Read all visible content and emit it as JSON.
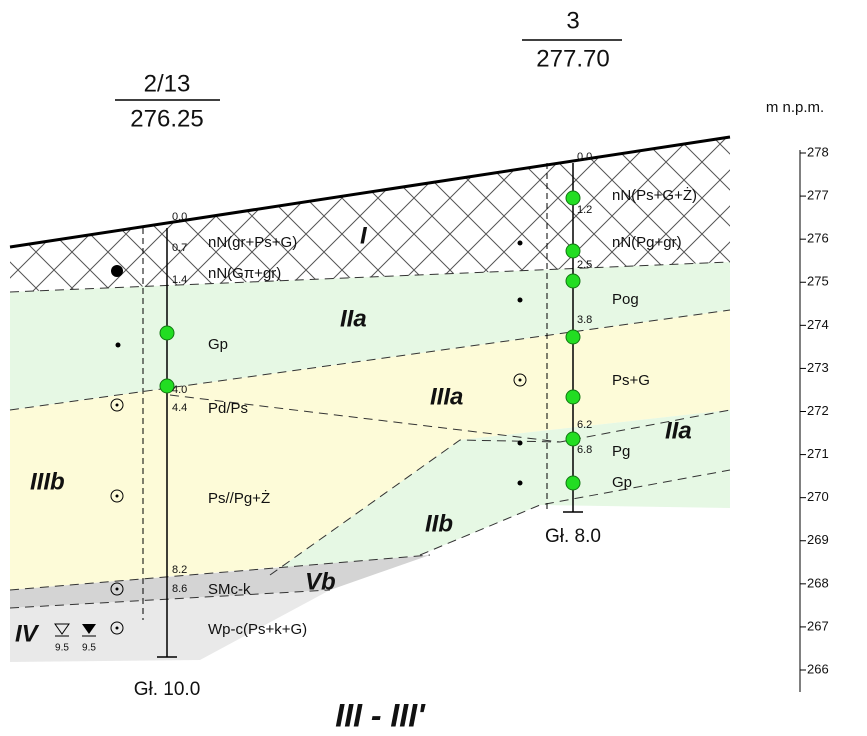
{
  "title": "III - III'",
  "scale": {
    "label": "m n.p.m.",
    "ticks": [
      278,
      277,
      276,
      275,
      274,
      273,
      272,
      271,
      270,
      269,
      268,
      267,
      266
    ]
  },
  "zones": [
    "I",
    "IIa",
    "IIIa",
    "IIa",
    "IIIb",
    "IIb",
    "Vb",
    "IV"
  ],
  "boreholes": [
    {
      "name": "2/13",
      "elevation": "276.25",
      "depths": [
        "0.0",
        "0.7",
        "1.4",
        "4.0",
        "4.4",
        "8.2",
        "8.6"
      ],
      "layers": [
        "nN(gr+Ps+G)",
        "nN(Gπ+gr)",
        "Gp",
        "Pd/Ps",
        "Ps//Pg+Ż",
        "SMc-k",
        "Wp-c(Ps+k+G)"
      ],
      "water": [
        "9.5",
        "9.5"
      ],
      "bottom": "Gł. 10.0"
    },
    {
      "name": "3",
      "elevation": "277.70",
      "depths": [
        "0.0",
        "1.2",
        "2.5",
        "3.8",
        "6.2",
        "6.8"
      ],
      "layers": [
        "nN(Ps+G+Ż)",
        "nN(Pg+gr)",
        "Pog",
        "Ps+G",
        "Pg",
        "Gp"
      ],
      "bottom": "Gł. 8.0"
    }
  ]
}
